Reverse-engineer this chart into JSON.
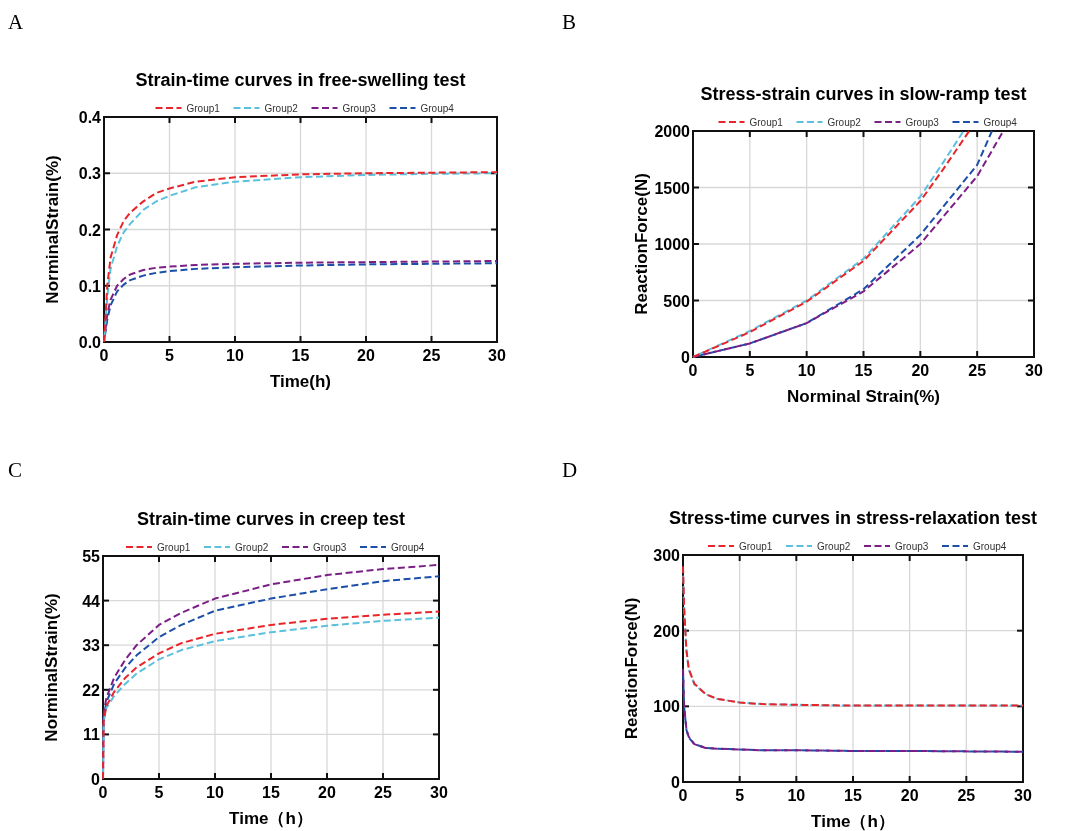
{
  "chart_data": [
    {
      "type": "line",
      "title": "Strain-time curves in free-swelling test",
      "xlabel": "Time(h)",
      "ylabel": "NorminalStrain(%)",
      "annotations": [
        "A"
      ],
      "xlim": [
        0,
        30
      ],
      "xticks": [
        0,
        5,
        10,
        15,
        20,
        25,
        30
      ],
      "ylim": [
        0,
        0.4
      ],
      "yticks": [
        {
          "value": 0,
          "label": "0.0"
        },
        0.1,
        0.2,
        0.3,
        0.4
      ],
      "grid": true,
      "legend": "top",
      "line_style": "dashed",
      "marker": "none",
      "x": [
        0,
        0.25,
        0.5,
        1,
        1.5,
        2,
        3,
        4,
        5,
        7,
        10,
        15,
        20,
        25,
        30
      ],
      "series": [
        {
          "name": "Group1",
          "color": "#e8252a",
          "values": [
            0,
            0.1,
            0.15,
            0.19,
            0.215,
            0.23,
            0.25,
            0.265,
            0.273,
            0.285,
            0.293,
            0.298,
            0.3,
            0.301,
            0.302
          ]
        },
        {
          "name": "Group2",
          "color": "#5bc0de",
          "values": [
            0,
            0.08,
            0.13,
            0.17,
            0.195,
            0.21,
            0.235,
            0.25,
            0.26,
            0.275,
            0.285,
            0.293,
            0.297,
            0.299,
            0.3
          ]
        },
        {
          "name": "Group3",
          "color": "#7b1f86",
          "values": [
            0,
            0.05,
            0.075,
            0.1,
            0.112,
            0.12,
            0.128,
            0.132,
            0.134,
            0.137,
            0.139,
            0.141,
            0.142,
            0.143,
            0.144
          ]
        },
        {
          "name": "Group4",
          "color": "#1c4fa8",
          "values": [
            0,
            0.04,
            0.065,
            0.09,
            0.102,
            0.11,
            0.118,
            0.123,
            0.126,
            0.13,
            0.133,
            0.136,
            0.138,
            0.139,
            0.14
          ]
        }
      ]
    },
    {
      "type": "line",
      "title": "Stress-strain curves in slow-ramp test",
      "xlabel": "Norminal Strain(%)",
      "ylabel": "ReactionForce(N)",
      "annotations": [
        "B"
      ],
      "xlim": [
        0,
        30
      ],
      "xticks": [
        0,
        5,
        10,
        15,
        20,
        25,
        30
      ],
      "ylim": [
        0,
        2000
      ],
      "yticks": [
        0,
        500,
        1000,
        1500,
        2000
      ],
      "grid": true,
      "legend": "top",
      "line_style": "dashed",
      "marker": "none",
      "series": [
        {
          "name": "Group1",
          "color": "#e8252a",
          "x": [
            0,
            5,
            10,
            15,
            20,
            22,
            24.3
          ],
          "values": [
            0,
            220,
            490,
            850,
            1380,
            1660,
            2000
          ]
        },
        {
          "name": "Group2",
          "color": "#5bc0de",
          "x": [
            0,
            5,
            10,
            15,
            20,
            22,
            23.8
          ],
          "values": [
            0,
            230,
            500,
            870,
            1420,
            1720,
            2000
          ]
        },
        {
          "name": "Group3",
          "color": "#7b1f86",
          "x": [
            0,
            5,
            10,
            15,
            20,
            25,
            27.3
          ],
          "values": [
            0,
            120,
            300,
            580,
            1000,
            1600,
            2000
          ]
        },
        {
          "name": "Group4",
          "color": "#1c4fa8",
          "x": [
            0,
            5,
            10,
            15,
            20,
            25,
            26.3
          ],
          "values": [
            0,
            120,
            300,
            600,
            1080,
            1700,
            2000
          ]
        }
      ]
    },
    {
      "type": "line",
      "title": "Strain-time curves in creep test",
      "xlabel": "Time（h）",
      "ylabel": "NorminalStrain(%)",
      "annotations": [
        "C"
      ],
      "xlim": [
        0,
        30
      ],
      "xticks": [
        0,
        5,
        10,
        15,
        20,
        25,
        30
      ],
      "ylim": [
        0,
        55
      ],
      "yticks": [
        0,
        11,
        22,
        33,
        44,
        55
      ],
      "grid": true,
      "legend": "top",
      "line_style": "dashed",
      "marker": "none",
      "x": [
        0,
        0.05,
        0.3,
        1,
        2,
        3,
        5,
        7,
        10,
        15,
        20,
        25,
        30
      ],
      "series": [
        {
          "name": "Group1",
          "color": "#e8252a",
          "values": [
            0,
            14,
            18,
            21.5,
            25,
            27.5,
            31,
            33.5,
            35.8,
            38,
            39.5,
            40.5,
            41.3
          ]
        },
        {
          "name": "Group2",
          "color": "#5bc0de",
          "values": [
            0,
            14,
            17.5,
            20.5,
            23.5,
            26,
            29.5,
            31.8,
            34,
            36.2,
            37.8,
            39,
            39.8
          ]
        },
        {
          "name": "Group3",
          "color": "#7b1f86",
          "values": [
            0,
            16,
            20,
            25,
            29.5,
            33,
            38,
            41,
            44.5,
            48,
            50.3,
            51.8,
            52.8
          ]
        },
        {
          "name": "Group4",
          "color": "#1c4fa8",
          "values": [
            0,
            15,
            19,
            23.5,
            27.5,
            30.5,
            35,
            38,
            41.5,
            44.5,
            46.8,
            48.8,
            50
          ]
        }
      ]
    },
    {
      "type": "line",
      "title": "Stress-time curves in stress-relaxation test",
      "xlabel": "Time（h）",
      "ylabel": "ReactionForce(N)",
      "annotations": [
        "D"
      ],
      "xlim": [
        0,
        30
      ],
      "xticks": [
        0,
        5,
        10,
        15,
        20,
        25,
        30
      ],
      "ylim": [
        0,
        300
      ],
      "yticks": [
        0,
        100,
        200,
        300
      ],
      "grid": true,
      "legend": "top",
      "line_style": "dashed",
      "marker": "none",
      "x": [
        0,
        0.1,
        0.3,
        0.5,
        1,
        2,
        3,
        5,
        7,
        10,
        15,
        20,
        30
      ],
      "series": [
        {
          "name": "Group1",
          "color": "#e8252a",
          "values": [
            285,
            230,
            175,
            150,
            130,
            116,
            110,
            105,
            103,
            102,
            101,
            101,
            101
          ]
        },
        {
          "name": "Group2",
          "color": "#5bc0de",
          "values": [
            280,
            228,
            174,
            149,
            129,
            116,
            110,
            105,
            103,
            102,
            101,
            101,
            101
          ]
        },
        {
          "name": "Group3",
          "color": "#7b1f86",
          "values": [
            150,
            100,
            70,
            60,
            50,
            45,
            44,
            43,
            42,
            42,
            41,
            41,
            40
          ]
        },
        {
          "name": "Group4",
          "color": "#1c4fa8",
          "values": [
            148,
            99,
            69,
            59,
            50,
            45,
            44,
            43,
            42,
            42,
            41,
            41,
            40
          ]
        }
      ]
    }
  ]
}
